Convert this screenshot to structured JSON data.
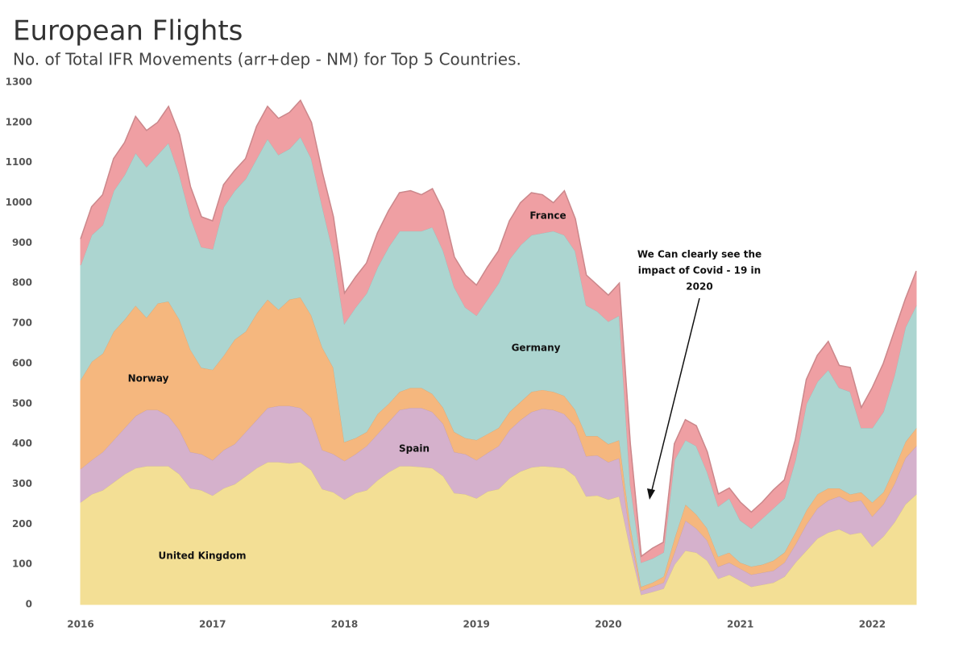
{
  "chart_data": {
    "type": "stacked_area",
    "title": "European Flights",
    "subtitle": "No. of Total IFR Movements (arr+dep - NM) for Top 5 Countries.",
    "categories": [
      "2016",
      null,
      null,
      null,
      null,
      null,
      null,
      null,
      null,
      null,
      null,
      null,
      "2017",
      null,
      null,
      null,
      null,
      null,
      null,
      null,
      null,
      null,
      null,
      null,
      "2018",
      null,
      null,
      null,
      null,
      null,
      null,
      null,
      null,
      null,
      null,
      null,
      "2019",
      null,
      null,
      null,
      null,
      null,
      null,
      null,
      null,
      null,
      null,
      null,
      "2020",
      null,
      null,
      null,
      null,
      null,
      null,
      null,
      null,
      null,
      null,
      null,
      "2021",
      null,
      null,
      null,
      null,
      null,
      null,
      null,
      null,
      null,
      null,
      null,
      "2022",
      null,
      null,
      null,
      null
    ],
    "series": [
      {
        "name": "United Kingdom",
        "color": "#f3df95",
        "values": [
          255,
          275,
          285,
          305,
          325,
          340,
          345,
          345,
          345,
          325,
          290,
          285,
          272,
          290,
          300,
          320,
          340,
          355,
          355,
          352,
          355,
          335,
          288,
          280,
          262,
          278,
          285,
          310,
          330,
          345,
          345,
          343,
          340,
          320,
          278,
          275,
          265,
          282,
          288,
          315,
          332,
          342,
          345,
          343,
          340,
          320,
          270,
          272,
          262,
          270,
          140,
          25,
          32,
          40,
          100,
          135,
          130,
          110,
          65,
          75,
          60,
          45,
          50,
          55,
          70,
          105,
          135,
          165,
          180,
          188,
          175,
          180,
          145,
          170,
          205,
          250,
          275
        ]
      },
      {
        "name": "Spain",
        "color": "#d5b1cc",
        "values": [
          83,
          85,
          95,
          105,
          115,
          130,
          140,
          140,
          125,
          110,
          90,
          90,
          88,
          95,
          100,
          110,
          120,
          135,
          140,
          143,
          135,
          130,
          97,
          95,
          96,
          97,
          110,
          115,
          125,
          140,
          145,
          147,
          140,
          130,
          102,
          100,
          95,
          96,
          107,
          120,
          128,
          138,
          143,
          142,
          135,
          125,
          100,
          100,
          93,
          95,
          35,
          10,
          13,
          15,
          30,
          75,
          60,
          50,
          30,
          30,
          30,
          30,
          30,
          30,
          35,
          45,
          65,
          75,
          80,
          82,
          80,
          80,
          75,
          80,
          95,
          115,
          120
        ]
      },
      {
        "name": "Norway",
        "color": "#f5b77e",
        "values": [
          222,
          245,
          245,
          270,
          270,
          275,
          230,
          265,
          285,
          275,
          255,
          215,
          225,
          235,
          260,
          250,
          265,
          270,
          240,
          265,
          275,
          255,
          255,
          215,
          47,
          40,
          35,
          50,
          45,
          45,
          50,
          50,
          45,
          40,
          50,
          40,
          50,
          47,
          45,
          45,
          45,
          50,
          47,
          45,
          45,
          40,
          50,
          48,
          45,
          45,
          25,
          10,
          10,
          15,
          35,
          40,
          35,
          30,
          25,
          25,
          15,
          20,
          20,
          25,
          25,
          30,
          35,
          35,
          30,
          20,
          20,
          20,
          35,
          30,
          40,
          40,
          45
        ]
      },
      {
        "name": "Germany",
        "color": "#acd5d0",
        "values": [
          285,
          315,
          320,
          350,
          360,
          380,
          375,
          370,
          395,
          360,
          330,
          300,
          300,
          370,
          370,
          380,
          385,
          400,
          385,
          375,
          400,
          390,
          350,
          285,
          295,
          325,
          345,
          365,
          390,
          400,
          390,
          390,
          415,
          390,
          360,
          325,
          310,
          335,
          360,
          380,
          390,
          390,
          390,
          400,
          400,
          395,
          325,
          310,
          305,
          310,
          100,
          60,
          60,
          60,
          195,
          160,
          170,
          140,
          125,
          135,
          105,
          95,
          115,
          130,
          135,
          180,
          265,
          280,
          295,
          250,
          255,
          160,
          185,
          200,
          230,
          285,
          305
        ]
      },
      {
        "name": "France",
        "color": "#ef9fa3",
        "values": [
          65,
          70,
          75,
          80,
          80,
          90,
          90,
          80,
          90,
          100,
          75,
          75,
          70,
          55,
          50,
          50,
          80,
          80,
          90,
          90,
          90,
          90,
          85,
          90,
          75,
          75,
          75,
          85,
          90,
          95,
          100,
          90,
          95,
          100,
          75,
          80,
          75,
          80,
          80,
          95,
          105,
          105,
          95,
          70,
          110,
          80,
          75,
          65,
          65,
          80,
          100,
          15,
          25,
          25,
          40,
          50,
          50,
          50,
          30,
          25,
          45,
          40,
          40,
          45,
          45,
          50,
          60,
          65,
          70,
          55,
          60,
          50,
          100,
          120,
          110,
          70,
          85
        ]
      }
    ],
    "ylim": [
      0,
      1300
    ],
    "yticks": [
      0,
      100,
      200,
      300,
      400,
      500,
      600,
      700,
      800,
      900,
      1000,
      1100,
      1200,
      1300
    ],
    "annotation": [
      "We Can clearly see the",
      "impact of Covid - 19 in",
      "2020"
    ]
  }
}
